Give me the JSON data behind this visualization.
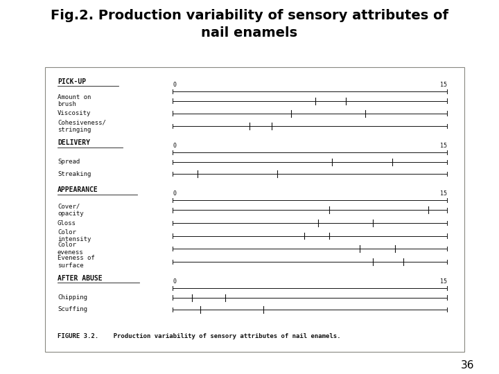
{
  "title_line1": "Fig.2. Production variability of sensory attributes of",
  "title_line2": "nail enamels",
  "title_fontsize": 14,
  "bg_color": "#e8e0cc",
  "box_bg": "#ddd8c4",
  "box_edge": "#888880",
  "figure_caption": "FIGURE 3.2.    Production variability of sensory attributes of nail enamels.",
  "page_number": "36",
  "sections": [
    {
      "name": "PICK-UP",
      "scale_left": "0",
      "scale_right": "15",
      "attributes": [
        {
          "label": "Amount on\nbrush",
          "tick1": 0.52,
          "tick2": 0.63
        },
        {
          "label": "Viscosity",
          "tick1": 0.43,
          "tick2": 0.7
        },
        {
          "label": "Cohesiveness/\nstringing",
          "tick1": 0.28,
          "tick2": 0.36
        }
      ]
    },
    {
      "name": "DELIVERY",
      "scale_left": "0",
      "scale_right": "15",
      "attributes": [
        {
          "label": "Spread",
          "tick1": 0.58,
          "tick2": 0.8
        },
        {
          "label": "Streaking",
          "tick1": 0.09,
          "tick2": 0.38
        }
      ]
    },
    {
      "name": "APPEARANCE",
      "scale_left": "0",
      "scale_right": "15",
      "attributes": [
        {
          "label": "Cover/\nopacity",
          "tick1": 0.57,
          "tick2": 0.93
        },
        {
          "label": "Gloss",
          "tick1": 0.53,
          "tick2": 0.73
        },
        {
          "label": "Color\nintensity",
          "tick1": 0.48,
          "tick2": 0.57
        },
        {
          "label": "Color\neveness",
          "tick1": 0.68,
          "tick2": 0.81
        },
        {
          "label": "Eveness of\nsurface",
          "tick1": 0.73,
          "tick2": 0.84
        }
      ]
    },
    {
      "name": "AFTER ABUSE",
      "scale_left": "0",
      "scale_right": "15",
      "attributes": [
        {
          "label": "Chipping",
          "tick1": 0.07,
          "tick2": 0.19
        },
        {
          "label": "Scuffing",
          "tick1": 0.1,
          "tick2": 0.33
        }
      ]
    }
  ],
  "lc": "#111111",
  "label_fs": 6.5,
  "section_fs": 7.0,
  "scale_fs": 6.0,
  "caption_fs": 6.5
}
